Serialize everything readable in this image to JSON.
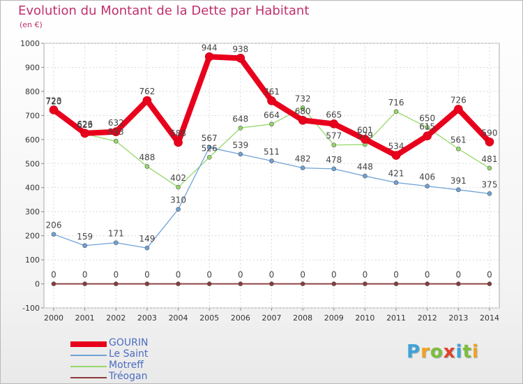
{
  "title": "Evolution du Montant de la Dette par Habitant",
  "subtitle": "(en €)",
  "brand": {
    "letters": [
      {
        "ch": "P",
        "color": "#3fa3d8"
      },
      {
        "ch": "r",
        "color": "#f4a21c"
      },
      {
        "ch": "o",
        "color": "#7dbd3a"
      },
      {
        "ch": "x",
        "color": "#e2402a"
      },
      {
        "ch": "i",
        "color": "#3fa3d8"
      },
      {
        "ch": "t",
        "color": "#7dbd3a"
      },
      {
        "ch": "i",
        "color": "#f4a21c"
      }
    ]
  },
  "chart_data": {
    "type": "line",
    "x": [
      "2000",
      "2001",
      "2002",
      "2003",
      "2004",
      "2005",
      "2006",
      "2007",
      "2008",
      "2009",
      "2010",
      "2011",
      "2012",
      "2013",
      "2014"
    ],
    "yticks": [
      "-100",
      "0",
      "100",
      "200",
      "300",
      "400",
      "500",
      "600",
      "700",
      "800",
      "900",
      "1000"
    ],
    "ylim": [
      -100,
      1000
    ],
    "grid": true,
    "legend_position": "bottom-left",
    "series": [
      {
        "name": "GOURIN",
        "color": "#e8001c",
        "values": [
          723,
          626,
          632,
          762,
          588,
          944,
          938,
          761,
          680,
          665,
          601,
          534,
          615,
          726,
          590
        ]
      },
      {
        "name": "Le Saint",
        "color": "#6fa2d6",
        "values": [
          206,
          159,
          171,
          149,
          310,
          567,
          539,
          511,
          482,
          478,
          448,
          421,
          406,
          391,
          375
        ]
      },
      {
        "name": "Motreff",
        "color": "#94d86a",
        "values": [
          720,
          623,
          593,
          488,
          402,
          526,
          648,
          664,
          732,
          577,
          579,
          716,
          650,
          561,
          481
        ]
      },
      {
        "name": "Tréogan",
        "color": "#8a3a3a",
        "values": [
          0,
          0,
          0,
          0,
          0,
          0,
          0,
          0,
          0,
          0,
          0,
          0,
          0,
          0,
          0
        ]
      }
    ]
  }
}
